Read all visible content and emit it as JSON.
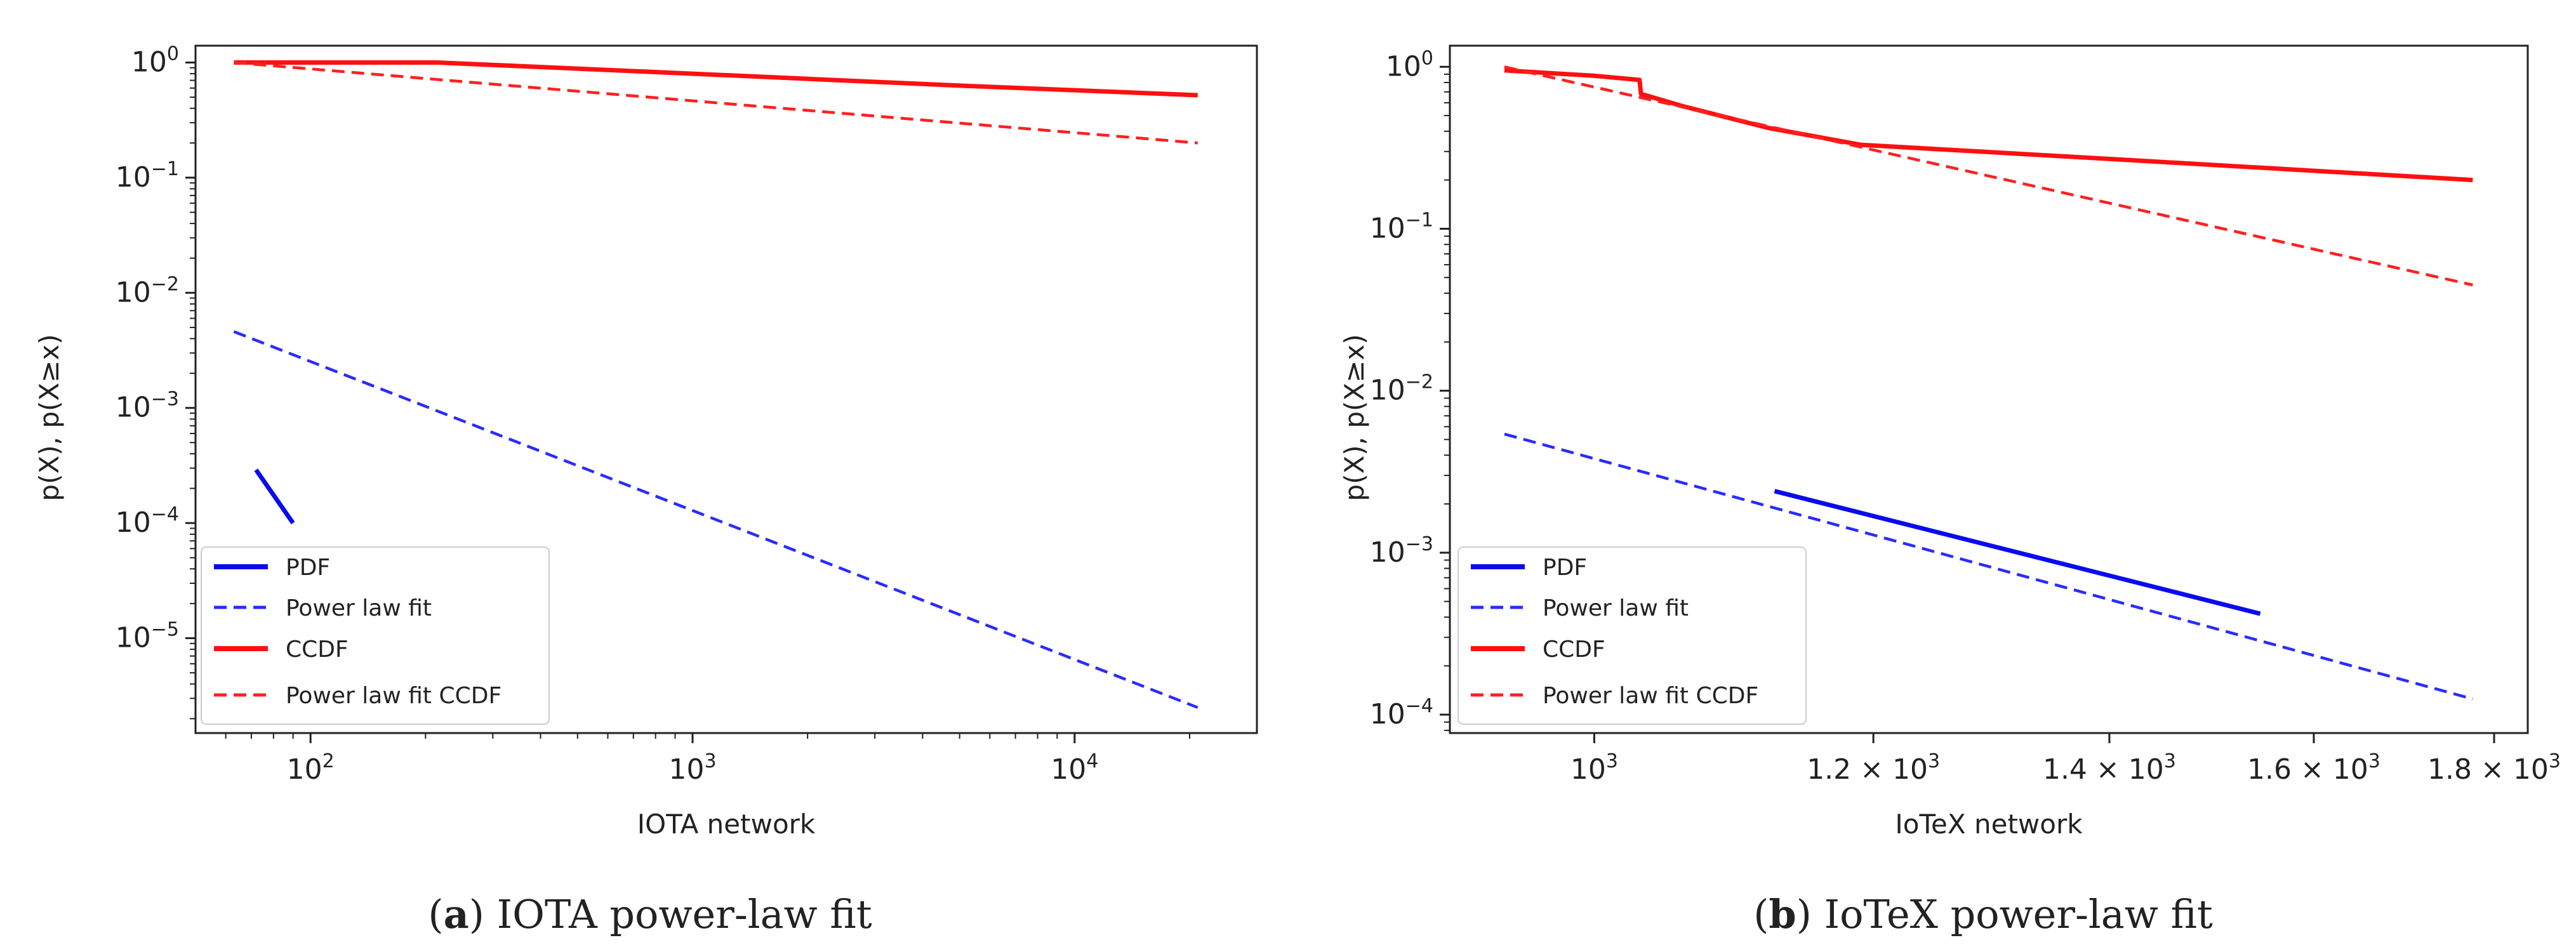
{
  "chart_data": [
    {
      "id": "iota",
      "type": "line",
      "scale": {
        "x": "log",
        "y": "log"
      },
      "xlabel": "IOTA network",
      "ylabel": "p(X),  p(X≥x)",
      "xlim": [
        50,
        30000
      ],
      "ylim": [
        1.5e-06,
        1.4
      ],
      "x_ticks": [
        {
          "value": 100,
          "base": "10",
          "exp": "2"
        },
        {
          "value": 1000,
          "base": "10",
          "exp": "3"
        },
        {
          "value": 10000,
          "base": "10",
          "exp": "4"
        }
      ],
      "y_ticks": [
        {
          "value": 1,
          "base": "10",
          "exp": "0"
        },
        {
          "value": 0.1,
          "base": "10",
          "exp": "−1"
        },
        {
          "value": 0.01,
          "base": "10",
          "exp": "−2"
        },
        {
          "value": 0.001,
          "base": "10",
          "exp": "−3"
        },
        {
          "value": 0.0001,
          "base": "10",
          "exp": "−4"
        },
        {
          "value": 1e-05,
          "base": "10",
          "exp": "−5"
        }
      ],
      "series": [
        {
          "name": "PDF",
          "style": "solid",
          "color": "#0a0af0",
          "points": [
            [
              72,
              0.00029
            ],
            [
              90,
              0.0001
            ]
          ]
        },
        {
          "name": "Power law fit",
          "style": "dashed",
          "color": "#2b2bff",
          "points": [
            [
              63,
              0.0046
            ],
            [
              21000,
              2.5e-06
            ]
          ]
        },
        {
          "name": "CCDF",
          "style": "solid",
          "color": "#ff1010",
          "points": [
            [
              63,
              1.0
            ],
            [
              215,
              1.0
            ],
            [
              1000,
              0.8
            ],
            [
              5000,
              0.63
            ],
            [
              21000,
              0.52
            ]
          ]
        },
        {
          "name": "Power law fit CCDF",
          "style": "dashed",
          "color": "#ff2020",
          "points": [
            [
              63,
              1.0
            ],
            [
              21000,
              0.2
            ]
          ]
        }
      ],
      "legend": [
        "PDF",
        "Power law fit",
        "CCDF",
        "Power law fit CCDF"
      ],
      "legend_position": "lower-left",
      "caption_label": "a",
      "caption": "IOTA power-law fit"
    },
    {
      "id": "iotex",
      "type": "line",
      "scale": {
        "x": "log",
        "y": "log"
      },
      "xlabel": "IoTeX network",
      "ylabel": "p(X),  p(X≥x)",
      "xlim": [
        910,
        1840
      ],
      "ylim": [
        7.7e-05,
        1.35
      ],
      "x_ticks": [
        {
          "value": 1000,
          "base": "10",
          "exp": "3",
          "mult": ""
        },
        {
          "value": 1200,
          "base": "10",
          "exp": "3",
          "mult": "1.2 × "
        },
        {
          "value": 1400,
          "base": "10",
          "exp": "3",
          "mult": "1.4 × "
        },
        {
          "value": 1600,
          "base": "10",
          "exp": "3",
          "mult": "1.6 × "
        },
        {
          "value": 1800,
          "base": "10",
          "exp": "3",
          "mult": "1.8 × "
        }
      ],
      "y_ticks": [
        {
          "value": 1,
          "base": "10",
          "exp": "0"
        },
        {
          "value": 0.1,
          "base": "10",
          "exp": "−1"
        },
        {
          "value": 0.01,
          "base": "10",
          "exp": "−2"
        },
        {
          "value": 0.001,
          "base": "10",
          "exp": "−3"
        },
        {
          "value": 0.0001,
          "base": "10",
          "exp": "−4"
        }
      ],
      "series": [
        {
          "name": "PDF",
          "style": "solid",
          "color": "#0a0af0",
          "points": [
            [
              1125,
              0.0024
            ],
            [
              1545,
              0.00042
            ]
          ]
        },
        {
          "name": "Power law fit",
          "style": "dashed",
          "color": "#2b2bff",
          "points": [
            [
              943,
              0.0054
            ],
            [
              1775,
              0.000125
            ]
          ]
        },
        {
          "name": "CCDF",
          "style": "solid",
          "color": "#ff1010",
          "points": [
            [
              943,
              0.95
            ],
            [
              1000,
              0.88
            ],
            [
              1030,
              0.83
            ],
            [
              1031,
              0.68
            ],
            [
              1060,
              0.57
            ],
            [
              1120,
              0.42
            ],
            [
              1190,
              0.33
            ],
            [
              1400,
              0.27
            ],
            [
              1775,
              0.2
            ]
          ]
        },
        {
          "name": "Power law fit CCDF",
          "style": "dashed",
          "color": "#ff2020",
          "points": [
            [
              943,
              1.0
            ],
            [
              1775,
              0.045
            ]
          ]
        }
      ],
      "legend": [
        "PDF",
        "Power law fit",
        "CCDF",
        "Power law fit CCDF"
      ],
      "legend_position": "lower-left",
      "caption_label": "b",
      "caption": "IoTeX power-law fit"
    }
  ]
}
